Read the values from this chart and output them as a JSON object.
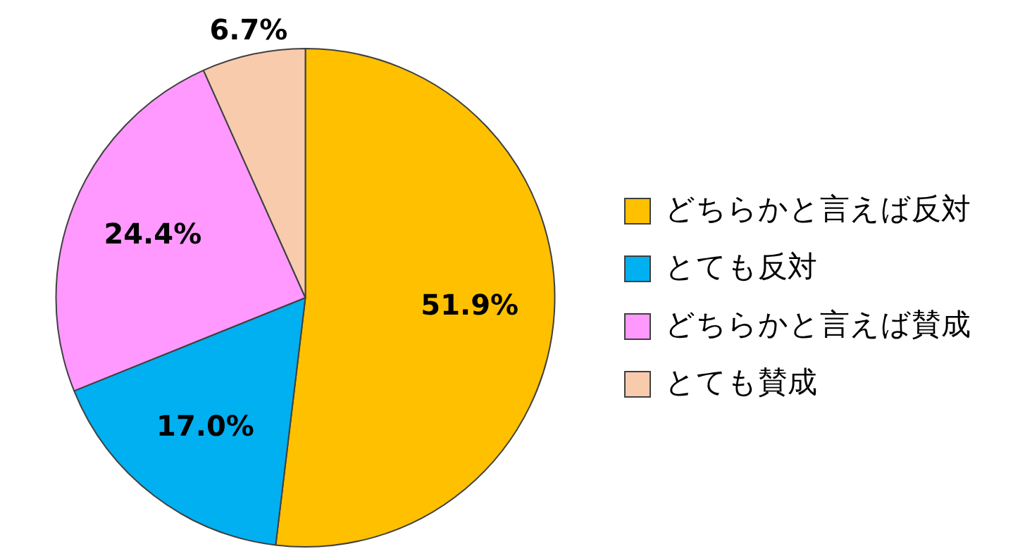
{
  "chart_data": {
    "type": "pie",
    "categories": [
      "どちらかと言えば反対",
      "とても反対",
      "どちらかと言えば賛成",
      "とても賛成"
    ],
    "values": [
      51.9,
      17.0,
      24.4,
      6.7
    ],
    "colors": [
      "#ffc000",
      "#00b0f0",
      "#ff99ff",
      "#f8cbad"
    ],
    "value_labels": [
      "51.9%",
      "17.0%",
      "24.4%",
      "6.7%"
    ],
    "legend": "right"
  }
}
